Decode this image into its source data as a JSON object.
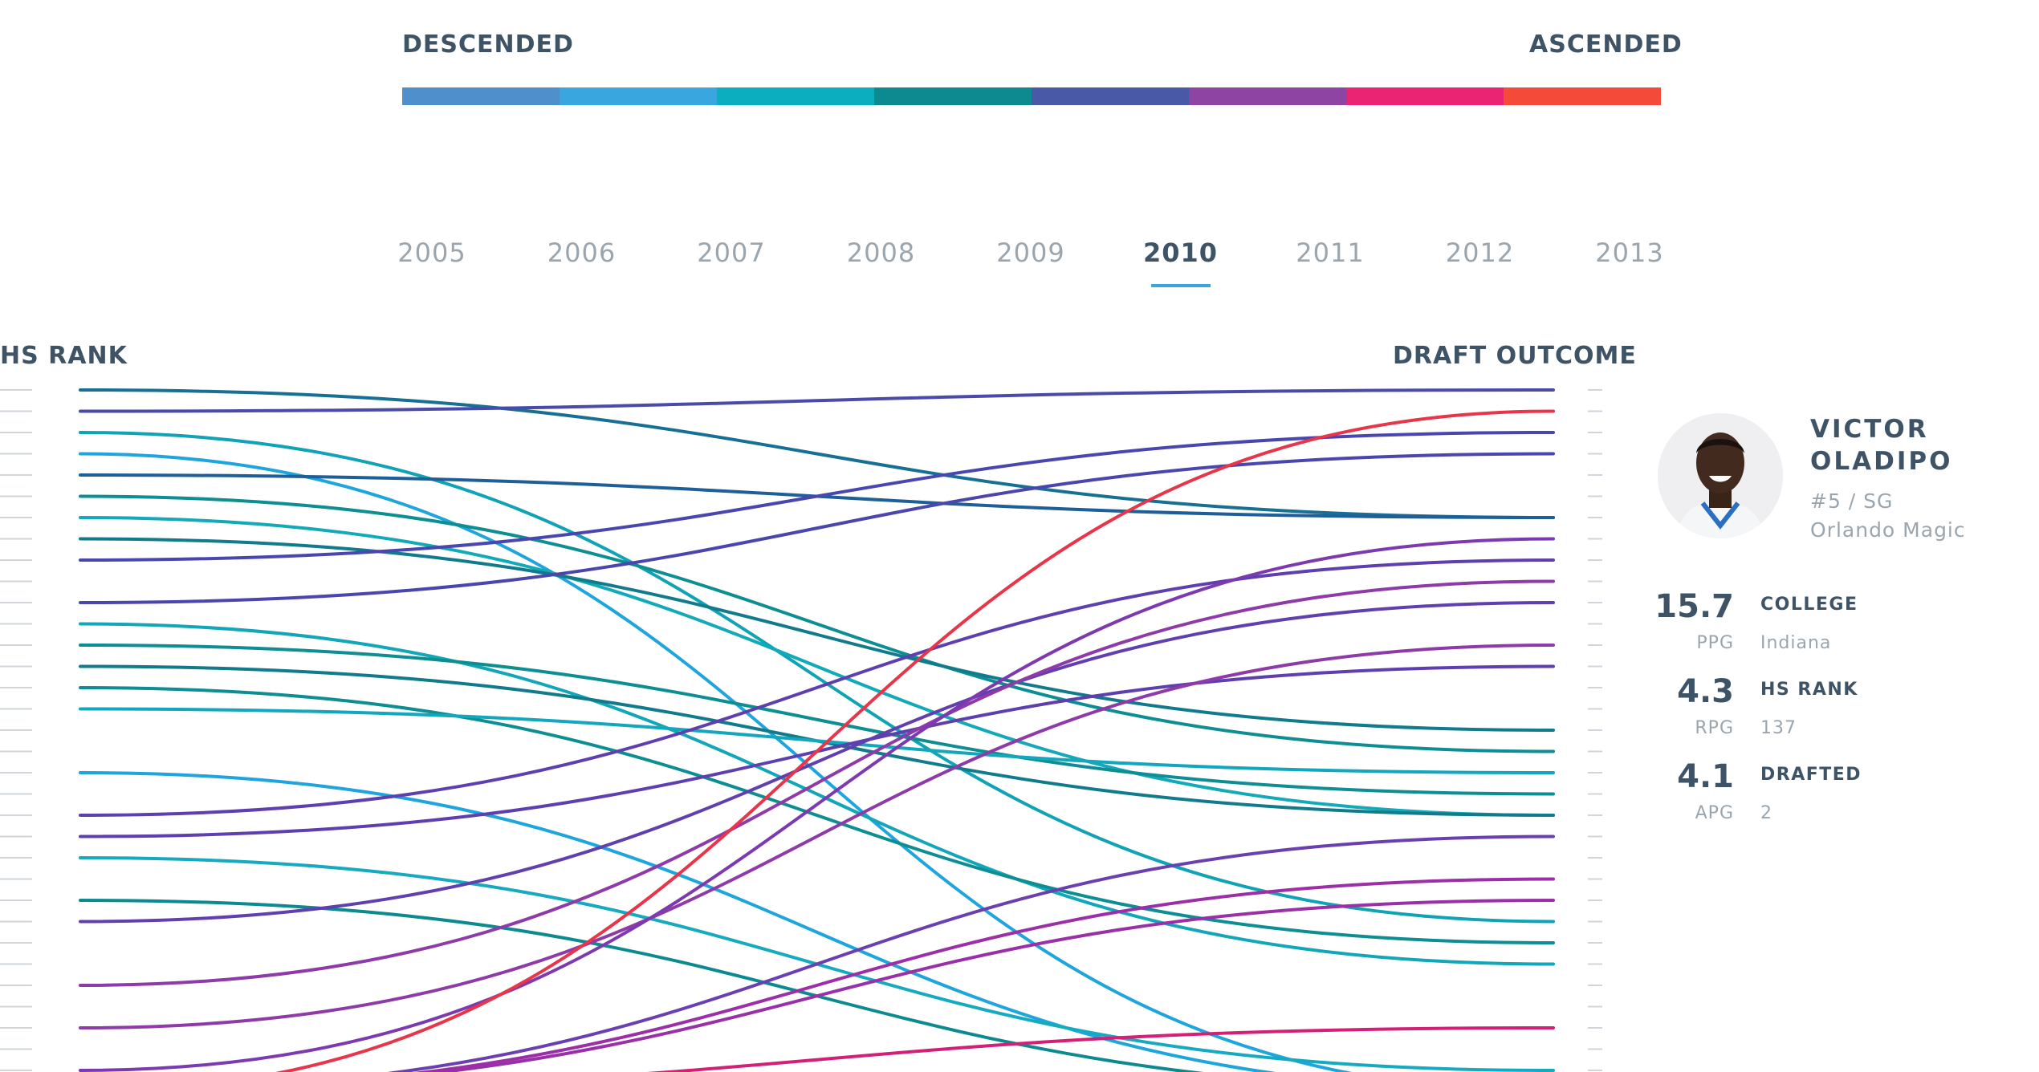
{
  "legend": {
    "left_label": "DESCENDED",
    "right_label": "ASCENDED",
    "colors": [
      "#4f8fcc",
      "#3aa6e0",
      "#0aaebf",
      "#0c8a8f",
      "#4a58a8",
      "#8e44a2",
      "#ea2472",
      "#f44a3a"
    ]
  },
  "years": {
    "items": [
      "2005",
      "2006",
      "2007",
      "2008",
      "2009",
      "2010",
      "2011",
      "2012",
      "2013"
    ],
    "active": "2010"
  },
  "axes": {
    "left_title": "HS RANK",
    "right_title": "DRAFT OUTCOME"
  },
  "player": {
    "name_line1": "VICTOR",
    "name_line2": "OLADIPO",
    "number_position": "#5 / SG",
    "team": "Orlando Magic",
    "stats": [
      {
        "value": "15.7",
        "unit": "PPG",
        "key": "COLLEGE",
        "text": "Indiana"
      },
      {
        "value": "4.3",
        "unit": "RPG",
        "key": "HS RANK",
        "text": "137"
      },
      {
        "value": "4.1",
        "unit": "APG",
        "key": "DRAFTED",
        "text": "2"
      }
    ]
  },
  "chart_data": {
    "type": "line",
    "title": "",
    "xlabel": "",
    "ylabel": "",
    "x": [
      "HS RANK",
      "DRAFT OUTCOME"
    ],
    "series": [
      {
        "values": [
          1,
          7
        ],
        "color": "#176f94"
      },
      {
        "values": [
          2,
          1
        ],
        "color": "#4a4aa8"
      },
      {
        "values": [
          3,
          26
        ],
        "color": "#0fa3b5"
      },
      {
        "values": [
          4,
          34
        ],
        "color": "#1ea5dd"
      },
      {
        "values": [
          5,
          7
        ],
        "color": "#1f5f99"
      },
      {
        "values": [
          6,
          18
        ],
        "color": "#0d8e93"
      },
      {
        "values": [
          7,
          21
        ],
        "color": "#12a9b8"
      },
      {
        "values": [
          8,
          17
        ],
        "color": "#117b8c"
      },
      {
        "values": [
          9,
          3
        ],
        "color": "#4a46b0"
      },
      {
        "values": [
          11,
          4
        ],
        "color": "#4b45ae"
      },
      {
        "values": [
          12,
          28
        ],
        "color": "#12a7b8"
      },
      {
        "values": [
          13,
          20
        ],
        "color": "#0d8e93"
      },
      {
        "values": [
          14,
          21
        ],
        "color": "#117b8c"
      },
      {
        "values": [
          15,
          27
        ],
        "color": "#0d8e93"
      },
      {
        "values": [
          16,
          19
        ],
        "color": "#12a7bd"
      },
      {
        "values": [
          19,
          34
        ],
        "color": "#1ea5dd"
      },
      {
        "values": [
          21,
          9
        ],
        "color": "#5e3fb0"
      },
      {
        "values": [
          22,
          14
        ],
        "color": "#5e3fb0"
      },
      {
        "values": [
          23,
          33
        ],
        "color": "#16aac0"
      },
      {
        "values": [
          25,
          34
        ],
        "color": "#0c8a8f"
      },
      {
        "values": [
          26,
          11
        ],
        "color": "#6040ae"
      },
      {
        "values": [
          29,
          10
        ],
        "color": "#8e3aa8"
      },
      {
        "values": [
          31,
          13
        ],
        "color": "#8e3aa8"
      },
      {
        "values": [
          33,
          8
        ],
        "color": "#7d3ab0"
      },
      {
        "values": [
          34,
          2
        ],
        "color": "#e8354a"
      },
      {
        "values": [
          34,
          24
        ],
        "color": "#9c2fa8"
      },
      {
        "values": [
          34,
          22
        ],
        "color": "#6a3fb0"
      },
      {
        "values": [
          34,
          25
        ],
        "color": "#9930a8"
      },
      {
        "values": [
          34,
          31
        ],
        "color": "#d41f77"
      }
    ]
  }
}
